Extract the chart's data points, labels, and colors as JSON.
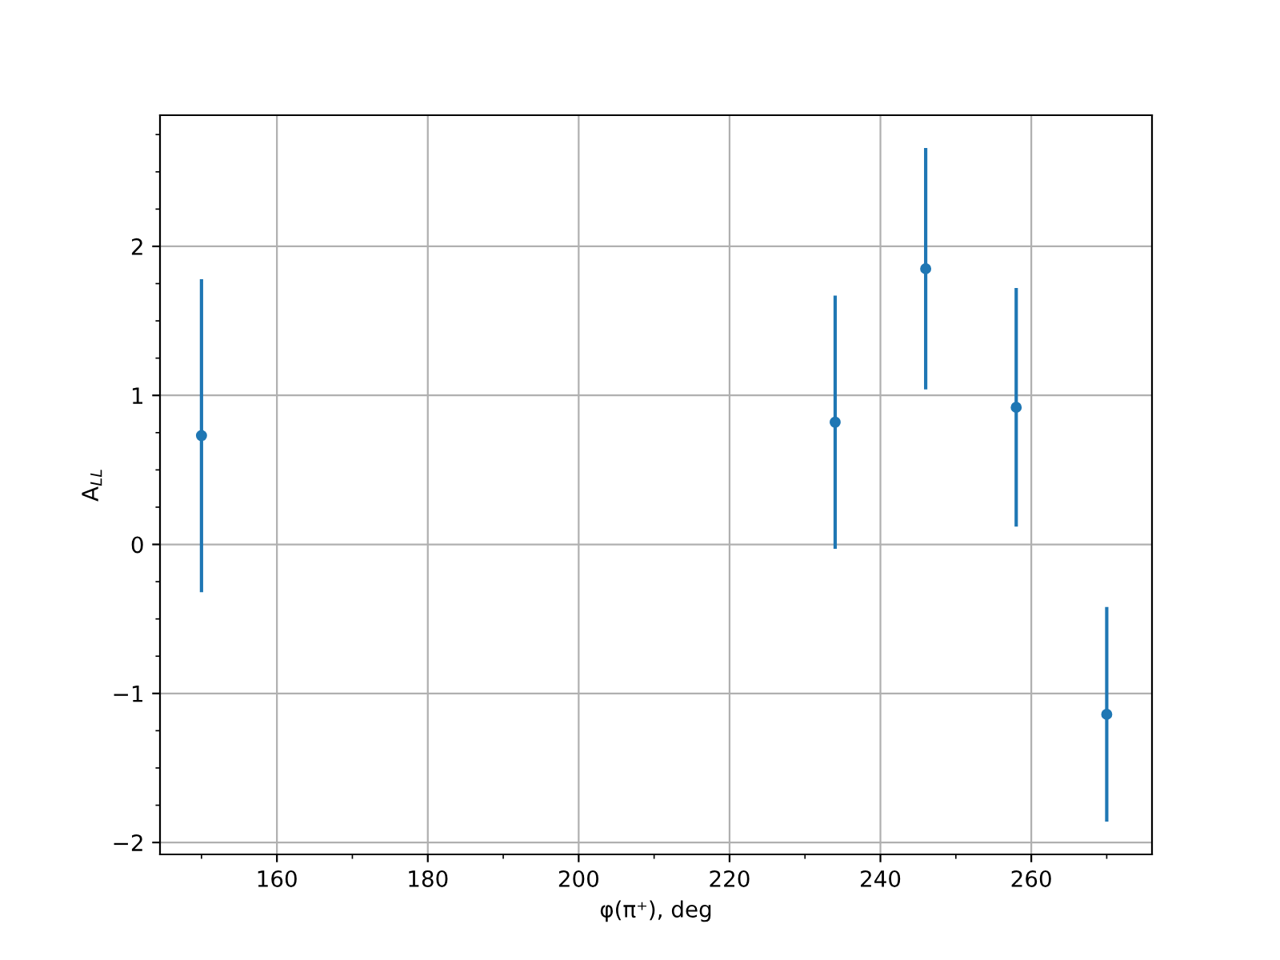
{
  "chart_data": {
    "type": "scatter",
    "xlabel": "φ(π⁺), deg",
    "ylabel": "A$_{LL}$",
    "x": [
      150,
      234,
      246,
      258,
      270
    ],
    "series": [
      {
        "color": "#1f77b4",
        "values": [
          0.73,
          0.82,
          1.85,
          0.92,
          -1.14
        ],
        "errors": [
          1.05,
          0.85,
          0.81,
          0.8,
          0.72
        ]
      }
    ],
    "xlim": [
      144.5,
      276
    ],
    "ylim": [
      -2.08,
      2.88
    ],
    "xticks": [
      160,
      180,
      200,
      220,
      240,
      260
    ],
    "yticks": [
      -2,
      -1,
      0,
      1,
      2
    ],
    "grid": true,
    "marker": "circle"
  }
}
